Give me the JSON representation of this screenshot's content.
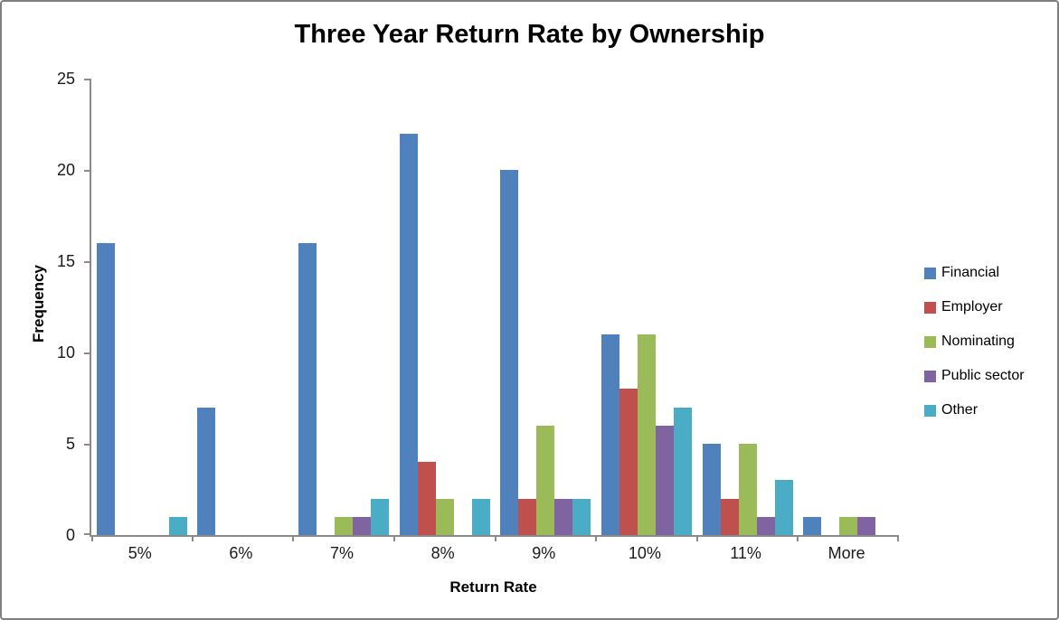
{
  "chart_data": {
    "type": "bar",
    "title": "Three Year Return Rate by Ownership",
    "xlabel": "Return Rate",
    "ylabel": "Frequency",
    "categories": [
      "5%",
      "6%",
      "7%",
      "8%",
      "9%",
      "10%",
      "11%",
      "More"
    ],
    "series": [
      {
        "name": "Financial",
        "color": "#4F81BD",
        "values": [
          16,
          7,
          16,
          22,
          20,
          11,
          5,
          1
        ]
      },
      {
        "name": "Employer",
        "color": "#C0504D",
        "values": [
          0,
          0,
          0,
          4,
          2,
          8,
          2,
          0
        ]
      },
      {
        "name": "Nominating",
        "color": "#9BBB59",
        "values": [
          0,
          0,
          1,
          2,
          6,
          11,
          5,
          1
        ]
      },
      {
        "name": "Public sector",
        "color": "#8064A2",
        "values": [
          0,
          0,
          1,
          0,
          2,
          6,
          1,
          1
        ]
      },
      {
        "name": "Other",
        "color": "#4BACC6",
        "values": [
          1,
          0,
          2,
          2,
          2,
          7,
          3,
          0
        ]
      }
    ],
    "ylim": [
      0,
      25
    ],
    "yticks": [
      0,
      5,
      10,
      15,
      20,
      25
    ],
    "grid": false,
    "legend_position": "right",
    "colors": {
      "axis": "#8A8A8A",
      "frame_border": "#7F7F7F",
      "text": "#000000",
      "background": "#FFFFFF"
    }
  }
}
